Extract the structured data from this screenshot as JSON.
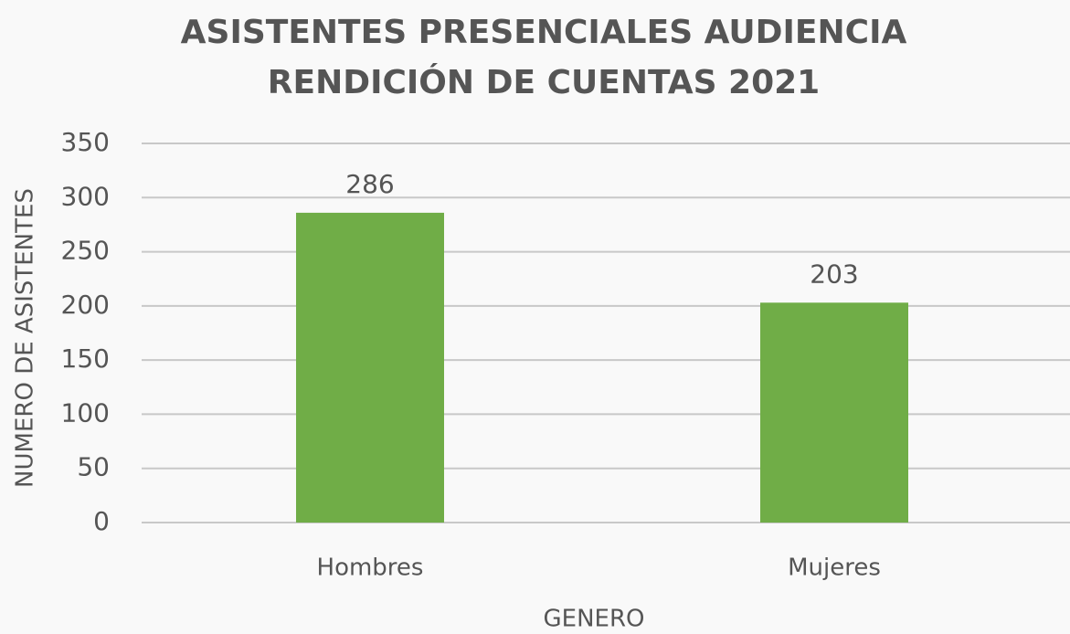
{
  "chart_data": {
    "type": "bar",
    "title": "ASISTENTES PRESENCIALES AUDIENCIA RENDICIÓN DE CUENTAS 2021",
    "xlabel": "GENERO",
    "ylabel": "NUMERO DE ASISTENTES",
    "categories": [
      "Hombres",
      "Mujeres"
    ],
    "values": [
      286,
      203
    ],
    "color": "#70ad47",
    "ylim": [
      0,
      350
    ],
    "yticks": [
      0,
      50,
      100,
      150,
      200,
      250,
      300,
      350
    ],
    "grid": true
  }
}
